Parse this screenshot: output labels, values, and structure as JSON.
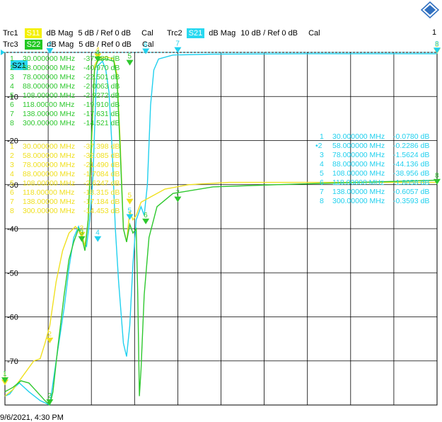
{
  "header": {
    "trc1": {
      "name": "Trc1",
      "param": "S11",
      "format": "dB Mag",
      "scale": "5 dB /",
      "ref": "Ref 0 dB",
      "cal": "Cal",
      "color": "#f4f000"
    },
    "trc2": {
      "name": "Trc2",
      "param": "S21",
      "format": "dB Mag",
      "scale": "10 dB /",
      "ref": "Ref 0 dB",
      "cal": "Cal",
      "color": "#28d8f0"
    },
    "trc3": {
      "name": "Trc3",
      "param": "S22",
      "format": "dB Mag",
      "scale": "5 dB /",
      "ref": "Ref 0 dB",
      "cal": "Cal",
      "color": "#22c822"
    },
    "channel": "1",
    "timestamp": "9/6/2021, 4:30 PM"
  },
  "colors": {
    "yellow": "#f0e020",
    "cyan": "#20d0ee",
    "green": "#2ec82e",
    "grid": "#000000"
  },
  "chart_data": {
    "type": "line",
    "xlim": [
      30,
      300
    ],
    "ylim": [
      -80,
      0
    ],
    "yticks": [
      -10,
      -20,
      -30,
      -40,
      -50,
      -60,
      -70
    ],
    "scale_tag": "S21",
    "grid": true,
    "series": [
      {
        "name": "S21",
        "color": "#20d0ee",
        "points": [
          [
            30,
            -78
          ],
          [
            33,
            -77.5
          ],
          [
            36,
            -76
          ],
          [
            39,
            -75
          ],
          [
            45,
            -77
          ],
          [
            52,
            -79
          ],
          [
            58,
            -80
          ],
          [
            62,
            -70
          ],
          [
            67,
            -58
          ],
          [
            70,
            -49
          ],
          [
            73,
            -42
          ],
          [
            76,
            -39.5
          ],
          [
            79,
            -43
          ],
          [
            81,
            -44
          ],
          [
            83,
            -38
          ],
          [
            85,
            -28
          ],
          [
            87,
            -7
          ],
          [
            88,
            -3
          ],
          [
            91,
            -2
          ],
          [
            93,
            -4
          ],
          [
            95,
            -9
          ],
          [
            97,
            -22
          ],
          [
            99,
            -40
          ],
          [
            101,
            -52
          ],
          [
            104,
            -66
          ],
          [
            106,
            -69
          ],
          [
            108,
            -62
          ],
          [
            110,
            -48
          ],
          [
            112,
            -38
          ],
          [
            115,
            -35
          ],
          [
            117,
            -37
          ],
          [
            119,
            -30
          ],
          [
            121,
            -12
          ],
          [
            123,
            -4
          ],
          [
            126,
            -1.5
          ],
          [
            135,
            -0.6
          ],
          [
            160,
            -0.4
          ],
          [
            220,
            -0.3
          ],
          [
            300,
            -0.3
          ]
        ]
      },
      {
        "name": "S11",
        "color": "#f0e020",
        "points": [
          [
            30,
            -78
          ],
          [
            35,
            -76.5
          ],
          [
            40,
            -74
          ],
          [
            44,
            -72
          ],
          [
            48,
            -70
          ],
          [
            52,
            -69.5
          ],
          [
            55,
            -66
          ],
          [
            58,
            -62
          ],
          [
            62,
            -52
          ],
          [
            66,
            -45
          ],
          [
            70,
            -41
          ],
          [
            74,
            -39.5
          ],
          [
            78,
            -41
          ],
          [
            80,
            -44
          ],
          [
            82,
            -38
          ],
          [
            84,
            -22
          ],
          [
            86,
            -3
          ],
          [
            88,
            -1.5
          ],
          [
            93,
            -1
          ],
          [
            98,
            -1.5
          ],
          [
            100,
            -5
          ],
          [
            102,
            -20
          ],
          [
            104,
            -40
          ],
          [
            106,
            -43
          ],
          [
            108,
            -36
          ],
          [
            110,
            -38
          ],
          [
            112,
            -37
          ],
          [
            115,
            -34
          ],
          [
            120,
            -33
          ],
          [
            130,
            -31
          ],
          [
            145,
            -30
          ],
          [
            170,
            -29.5
          ],
          [
            230,
            -29.5
          ],
          [
            300,
            -29.5
          ]
        ]
      },
      {
        "name": "S22",
        "color": "#2ec82e",
        "points": [
          [
            30,
            -77
          ],
          [
            35,
            -76
          ],
          [
            40,
            -74.5
          ],
          [
            45,
            -75
          ],
          [
            50,
            -77
          ],
          [
            55,
            -79
          ],
          [
            58,
            -80
          ],
          [
            60,
            -77
          ],
          [
            63,
            -67
          ],
          [
            67,
            -55
          ],
          [
            70,
            -47
          ],
          [
            73,
            -43
          ],
          [
            76,
            -40
          ],
          [
            78,
            -42
          ],
          [
            80,
            -45
          ],
          [
            82,
            -38
          ],
          [
            84,
            -20
          ],
          [
            86,
            -4
          ],
          [
            88,
            -1.8
          ],
          [
            93,
            -1.5
          ],
          [
            98,
            -2
          ],
          [
            100,
            -6
          ],
          [
            102,
            -22
          ],
          [
            104,
            -40
          ],
          [
            106,
            -43
          ],
          [
            108,
            -39
          ],
          [
            110,
            -41
          ],
          [
            112,
            -40
          ],
          [
            113,
            -55
          ],
          [
            114,
            -78
          ],
          [
            115,
            -72
          ],
          [
            117,
            -55
          ],
          [
            120,
            -42
          ],
          [
            125,
            -35
          ],
          [
            135,
            -32
          ],
          [
            160,
            -30.5
          ],
          [
            200,
            -30
          ],
          [
            250,
            -29.5
          ],
          [
            300,
            -29
          ]
        ]
      }
    ],
    "marker_tables": [
      {
        "trace": "S22",
        "color": "#2ec82e",
        "rows": [
          {
            "n": "1",
            "freq": "30.000000 MHz",
            "val": "-37.989 dB"
          },
          {
            "n": "2",
            "freq": "58.000000 MHz",
            "val": "-40.970 dB"
          },
          {
            "n": "3",
            "freq": "78.000000 MHz",
            "val": "-22.501 dB"
          },
          {
            "n": "4",
            "freq": "88.000000 MHz",
            "val": "-2.0063 dB"
          },
          {
            "n": "5",
            "freq": "108.00000 MHz",
            "val": "-2.9272 dB"
          },
          {
            "n": "6",
            "freq": "118.00000 MHz",
            "val": "-19.910 dB"
          },
          {
            "n": "7",
            "freq": "138.00000 MHz",
            "val": "-17.631 dB"
          },
          {
            "n": "8",
            "freq": "300.00000 MHz",
            "val": "-14.521 dB"
          }
        ]
      },
      {
        "trace": "S11",
        "color": "#f0e020",
        "rows": [
          {
            "n": "1",
            "freq": "30.000000 MHz",
            "val": "-37.398 dB"
          },
          {
            "n": "2",
            "freq": "58.000000 MHz",
            "val": "-32.085 dB"
          },
          {
            "n": "3",
            "freq": "78.000000 MHz",
            "val": "-21.490 dB"
          },
          {
            "n": "4",
            "freq": "88.000000 MHz",
            "val": "-1.7084 dB"
          },
          {
            "n": "5",
            "freq": "108.00000 MHz",
            "val": "-2.6247 dB"
          },
          {
            "n": "6",
            "freq": "118.00000 MHz",
            "val": "-18.315 dB"
          },
          {
            "n": "7",
            "freq": "138.00000 MHz",
            "val": "-17.184 dB"
          },
          {
            "n": "8",
            "freq": "300.00000 MHz",
            "val": "-14.453 dB"
          }
        ]
      },
      {
        "trace": "S21",
        "color": "#20d0ee",
        "rows": [
          {
            "n": "1",
            "freq": "30.000000 MHz",
            "val": "-0.0780 dB"
          },
          {
            "n": "•2",
            "freq": "58.000000 MHz",
            "val": "-0.2286 dB"
          },
          {
            "n": "3",
            "freq": "78.000000 MHz",
            "val": "-1.5624 dB"
          },
          {
            "n": "4",
            "freq": "88.000000 MHz",
            "val": "-44.136 dB"
          },
          {
            "n": "5",
            "freq": "108.00000 MHz",
            "val": "-38.956 dB"
          },
          {
            "n": "6",
            "freq": "118.00000 MHz",
            "val": "-1.8058 dB"
          },
          {
            "n": "7",
            "freq": "138.00000 MHz",
            "val": "-0.6057 dB"
          },
          {
            "n": "8",
            "freq": "300.00000 MHz",
            "val": "-0.3593 dB"
          }
        ]
      }
    ],
    "markers": [
      {
        "trace": "S11",
        "n": "1",
        "x": 30,
        "y": -75.5
      },
      {
        "trace": "S11",
        "n": "2",
        "x": 58,
        "y": -66
      },
      {
        "trace": "S11",
        "n": "3",
        "x": 78,
        "y": -42
      },
      {
        "trace": "S11",
        "n": "4",
        "x": 88,
        "y": -1.5
      },
      {
        "trace": "S11",
        "n": "5",
        "x": 108,
        "y": -34.5
      },
      {
        "trace": "S11",
        "n": "8",
        "x": 300,
        "y": -0.3
      },
      {
        "trace": "S22",
        "n": "1",
        "x": 30,
        "y": -75
      },
      {
        "trace": "S22",
        "n": "2",
        "x": 58,
        "y": -80
      },
      {
        "trace": "S22",
        "n": "3",
        "x": 78,
        "y": -43
      },
      {
        "trace": "S22",
        "n": "4",
        "x": 88,
        "y": -2.2
      },
      {
        "trace": "S22",
        "n": "5",
        "x": 108,
        "y": -3
      },
      {
        "trace": "S22",
        "n": "6",
        "x": 118,
        "y": -39
      },
      {
        "trace": "S22",
        "n": "7",
        "x": 138,
        "y": -34
      },
      {
        "trace": "S22",
        "n": "8",
        "x": 300,
        "y": -30
      },
      {
        "trace": "S21",
        "n": "2",
        "x": 58,
        "y": -0.3
      },
      {
        "trace": "S21",
        "n": "4",
        "x": 88,
        "y": -43
      },
      {
        "trace": "S21",
        "n": "5",
        "x": 108,
        "y": -38
      },
      {
        "trace": "S21",
        "n": "6",
        "x": 118,
        "y": -0.4
      },
      {
        "trace": "S21",
        "n": "7",
        "x": 138,
        "y": -0.1
      },
      {
        "trace": "S21",
        "n": "8",
        "x": 300,
        "y": -0.2
      }
    ]
  }
}
